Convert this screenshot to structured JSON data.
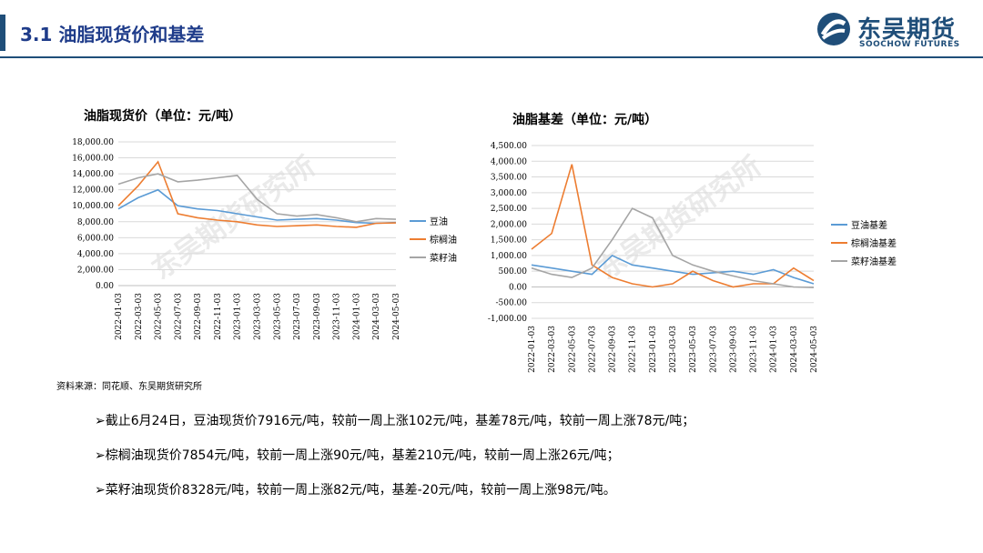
{
  "header": {
    "title": "3.1 油脂现货价和基差"
  },
  "logo": {
    "cn": "东吴期货",
    "en": "SOOCHOW FUTURES"
  },
  "watermark": "东吴期货研究所",
  "charts": [
    {
      "title": "油脂现货价（单位：元/吨）"
    },
    {
      "title": "油脂基差（单位：元/吨）"
    }
  ],
  "source": "资料来源：同花顺、东吴期货研究所",
  "bullets": [
    "➢截止6月24日，豆油现货价7916元/吨，较前一周上涨102元/吨，基差78元/吨，较前一周上涨78元/吨；",
    "➢棕榈油现货价7854元/吨，较前一周上涨90元/吨，基差210元/吨，较前一周上涨26元/吨；",
    "➢菜籽油现货价8328元/吨，较前一周上涨82元/吨，基差-20元/吨，较前一周上涨98元/吨。"
  ],
  "colors": {
    "soy": "#5b9bd5",
    "palm": "#ed7d31",
    "rapeseed": "#a5a5a5",
    "brand": "#1f4e79"
  },
  "chart_data": [
    {
      "type": "line",
      "title": "油脂现货价（单位：元/吨）",
      "x": [
        "2022-01-03",
        "2022-03-03",
        "2022-05-03",
        "2022-07-03",
        "2022-09-03",
        "2022-11-03",
        "2023-01-03",
        "2023-03-03",
        "2023-05-03",
        "2023-07-03",
        "2023-09-03",
        "2023-11-03",
        "2024-01-03",
        "2024-03-03",
        "2024-05-03"
      ],
      "yticks": [
        "18,000.00",
        "16,000.00",
        "14,000.00",
        "12,000.00",
        "10,000.00",
        "8,000.00",
        "6,000.00",
        "4,000.00",
        "2,000.00",
        "0.00"
      ],
      "ylim": [
        0,
        18000
      ],
      "legend_position": "right",
      "series": [
        {
          "name": "豆油",
          "values": [
            9600,
            11000,
            12000,
            10000,
            9600,
            9400,
            9000,
            8600,
            8200,
            8300,
            8400,
            8200,
            7900,
            7800,
            7900
          ]
        },
        {
          "name": "棕榈油",
          "values": [
            10000,
            12500,
            15500,
            9000,
            8500,
            8200,
            8000,
            7600,
            7400,
            7500,
            7600,
            7400,
            7300,
            7800,
            7850
          ]
        },
        {
          "name": "菜籽油",
          "values": [
            12700,
            13500,
            14000,
            13000,
            13200,
            13500,
            13800,
            10800,
            9000,
            8700,
            8900,
            8500,
            8000,
            8400,
            8300
          ]
        }
      ]
    },
    {
      "type": "line",
      "title": "油脂基差（单位：元/吨）",
      "x": [
        "2022-01-03",
        "2022-03-03",
        "2022-05-03",
        "2022-07-03",
        "2022-09-03",
        "2022-11-03",
        "2023-01-03",
        "2023-03-03",
        "2023-05-03",
        "2023-07-03",
        "2023-09-03",
        "2023-11-03",
        "2024-01-03",
        "2024-03-03",
        "2024-05-03"
      ],
      "yticks": [
        "4,500.00",
        "4,000.00",
        "3,500.00",
        "3,000.00",
        "2,500.00",
        "2,000.00",
        "1,500.00",
        "1,000.00",
        "500.00",
        "0.00",
        "-500.00",
        "-1,000.00"
      ],
      "ylim": [
        -1000,
        4500
      ],
      "legend_position": "right",
      "series": [
        {
          "name": "豆油基差",
          "values": [
            700,
            600,
            500,
            400,
            1000,
            700,
            600,
            500,
            400,
            450,
            500,
            400,
            550,
            300,
            100
          ]
        },
        {
          "name": "棕榈油基差",
          "values": [
            1200,
            1700,
            3900,
            700,
            300,
            100,
            0,
            100,
            500,
            200,
            0,
            100,
            100,
            600,
            200
          ]
        },
        {
          "name": "菜籽油基差",
          "values": [
            600,
            400,
            300,
            600,
            1500,
            2500,
            2200,
            1000,
            700,
            500,
            350,
            200,
            100,
            0,
            -20
          ]
        }
      ]
    }
  ]
}
